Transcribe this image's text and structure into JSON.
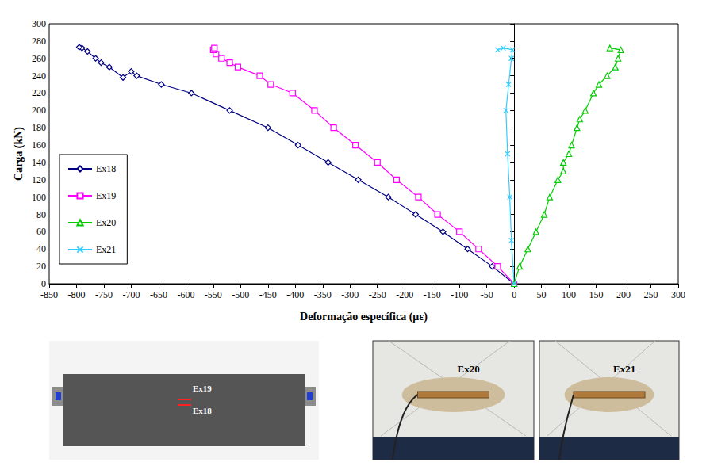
{
  "chart_data": {
    "type": "line",
    "x_label": "Deformação específica (με)",
    "y_label": "Carga (kN)",
    "xlim": [
      -850,
      300
    ],
    "xticks": [
      -850,
      -800,
      -750,
      -700,
      -650,
      -600,
      -550,
      -500,
      -450,
      -400,
      -350,
      -300,
      -250,
      -200,
      -150,
      -100,
      -50,
      0,
      50,
      100,
      150,
      200,
      250,
      300
    ],
    "ylim": [
      0,
      300
    ],
    "yticks": [
      0,
      20,
      40,
      60,
      80,
      100,
      120,
      140,
      160,
      180,
      200,
      220,
      240,
      260,
      280,
      300
    ],
    "grid": false,
    "legend": "left",
    "series": [
      {
        "name": "Ex18",
        "color": "#000080",
        "marker": "diamond",
        "x": [
          0,
          -40,
          -85,
          -130,
          -180,
          -230,
          -285,
          -340,
          -395,
          -450,
          -520,
          -590,
          -645,
          -690,
          -700,
          -715,
          -740,
          -755,
          -765,
          -780,
          -790,
          -795
        ],
        "y": [
          0,
          20,
          40,
          60,
          80,
          100,
          120,
          140,
          160,
          180,
          200,
          220,
          230,
          240,
          245,
          238,
          250,
          255,
          260,
          268,
          272,
          273
        ]
      },
      {
        "name": "Ex19",
        "color": "#FF00FF",
        "marker": "square",
        "x": [
          0,
          -30,
          -65,
          -100,
          -140,
          -175,
          -215,
          -250,
          -290,
          -330,
          -365,
          -405,
          -445,
          -465,
          -505,
          -520,
          -535,
          -545,
          -550,
          -548
        ],
        "y": [
          0,
          20,
          40,
          60,
          80,
          100,
          120,
          140,
          160,
          180,
          200,
          220,
          230,
          240,
          250,
          255,
          260,
          265,
          270,
          272
        ]
      },
      {
        "name": "Ex20",
        "color": "#00CC00",
        "marker": "triangle",
        "x": [
          0,
          10,
          25,
          40,
          55,
          65,
          80,
          90,
          90,
          100,
          105,
          115,
          120,
          130,
          145,
          155,
          170,
          185,
          190,
          195,
          175
        ],
        "y": [
          0,
          20,
          40,
          60,
          80,
          100,
          120,
          130,
          140,
          150,
          160,
          180,
          190,
          200,
          220,
          230,
          240,
          250,
          260,
          270,
          272
        ]
      },
      {
        "name": "Ex21",
        "color": "#33CCFF",
        "marker": "x",
        "x": [
          0,
          -5,
          -8,
          -12,
          -15,
          -10,
          -5,
          -3,
          -20,
          -30
        ],
        "y": [
          0,
          50,
          100,
          150,
          200,
          230,
          260,
          270,
          272,
          270
        ]
      }
    ]
  },
  "diagram": {
    "gauges": [
      "Ex19",
      "Ex18"
    ]
  },
  "photos": [
    {
      "label": "Ex20"
    },
    {
      "label": "Ex21"
    }
  ]
}
